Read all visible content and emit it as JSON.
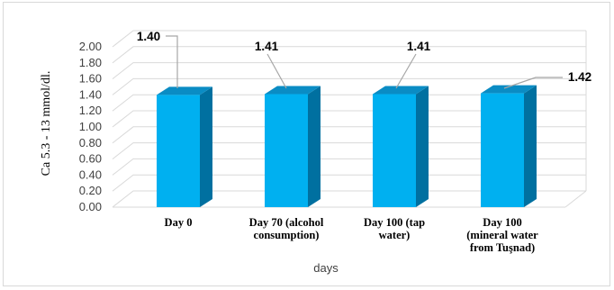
{
  "chart_data": {
    "type": "bar",
    "categories": [
      [
        "Day 0"
      ],
      [
        "Day 70 (alcohol",
        "consumption)"
      ],
      [
        "Day 100 (tap",
        "water)"
      ],
      [
        "Day 100",
        "(mineral water",
        "from Tuşnad)"
      ]
    ],
    "values": [
      1.4,
      1.41,
      1.41,
      1.42
    ],
    "data_labels": [
      "1.40",
      "1.41",
      "1.41",
      "1.42"
    ],
    "ylabel": "Ca 5.3 - 13 mmol/dl.",
    "xlabel": "days",
    "ylim": [
      0,
      2.0
    ],
    "yticks": [
      "0.00",
      "0.20",
      "0.40",
      "0.60",
      "0.80",
      "1.00",
      "1.20",
      "1.40",
      "1.60",
      "1.80",
      "2.00"
    ],
    "grid": true,
    "style": "3d",
    "colors": {
      "bar_front": "#00b0f0",
      "bar_side": "#0070a0",
      "bar_top": "#0a8cc4",
      "grid": "#d9d9d9",
      "leader": "#a6a6a6"
    }
  }
}
